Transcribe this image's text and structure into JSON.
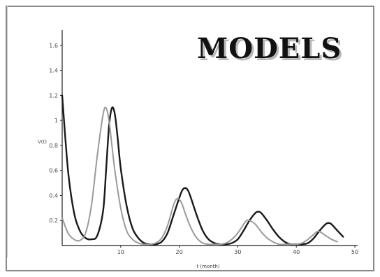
{
  "title": "MODELS",
  "chart_data": {
    "type": "line",
    "xlabel": "t (month)",
    "ylabel": "V(t)",
    "xlim": [
      0,
      50
    ],
    "ylim": [
      0,
      1.7
    ],
    "x_ticks": [
      10,
      20,
      30,
      40,
      50
    ],
    "y_ticks": [
      0.2,
      0.4,
      0.6,
      0.8,
      1,
      1.2,
      1.4,
      1.6
    ],
    "grid": false,
    "series": [
      {
        "color": "#1a1a1a",
        "x": [
          0,
          1,
          2,
          3,
          4,
          5,
          6,
          7,
          7.5,
          8,
          8.5,
          9,
          9.5,
          10,
          11,
          12,
          13,
          14,
          15,
          16,
          17,
          18,
          19,
          20,
          20.5,
          21,
          21.5,
          22,
          23,
          24,
          25,
          26,
          27,
          28,
          29,
          30,
          31,
          32,
          33,
          33.5,
          34,
          35,
          36,
          37,
          38,
          39,
          40,
          41,
          42,
          43,
          44,
          45,
          45.5,
          46,
          47,
          48
        ],
        "y": [
          1.2,
          0.6,
          0.27,
          0.12,
          0.06,
          0.05,
          0.08,
          0.28,
          0.6,
          0.95,
          1.1,
          1.05,
          0.85,
          0.62,
          0.32,
          0.14,
          0.06,
          0.02,
          0.01,
          0.01,
          0.03,
          0.1,
          0.24,
          0.38,
          0.44,
          0.46,
          0.44,
          0.38,
          0.24,
          0.12,
          0.05,
          0.02,
          0.01,
          0.01,
          0.02,
          0.05,
          0.12,
          0.2,
          0.26,
          0.27,
          0.26,
          0.2,
          0.13,
          0.07,
          0.03,
          0.01,
          0.01,
          0.01,
          0.02,
          0.06,
          0.12,
          0.17,
          0.18,
          0.17,
          0.12,
          0.07
        ]
      },
      {
        "color": "#9a9a9a",
        "x": [
          0,
          1,
          2,
          3,
          4,
          5,
          6,
          7,
          7.5,
          8,
          8.5,
          9,
          10,
          11,
          12,
          13,
          14,
          15,
          16,
          17,
          18,
          19,
          19.5,
          20,
          20.5,
          21,
          22,
          23,
          24,
          25,
          26,
          27,
          28,
          29,
          30,
          31,
          31.5,
          32,
          33,
          34,
          35,
          36,
          37,
          38,
          39,
          40,
          41,
          42,
          43,
          43.5,
          44,
          45,
          46,
          47
        ],
        "y": [
          0.22,
          0.1,
          0.05,
          0.04,
          0.1,
          0.32,
          0.72,
          1.05,
          1.1,
          1.0,
          0.8,
          0.6,
          0.3,
          0.12,
          0.05,
          0.02,
          0.01,
          0.01,
          0.02,
          0.06,
          0.16,
          0.32,
          0.37,
          0.37,
          0.33,
          0.26,
          0.14,
          0.06,
          0.02,
          0.01,
          0.01,
          0.01,
          0.02,
          0.05,
          0.1,
          0.17,
          0.2,
          0.2,
          0.17,
          0.11,
          0.06,
          0.03,
          0.01,
          0.01,
          0.01,
          0.01,
          0.02,
          0.05,
          0.09,
          0.11,
          0.11,
          0.08,
          0.05,
          0.03
        ]
      }
    ]
  }
}
